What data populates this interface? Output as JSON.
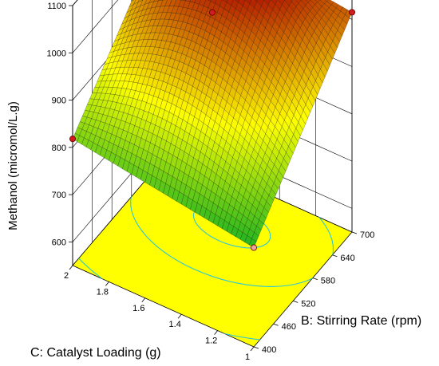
{
  "chart_data": {
    "type": "surface3d",
    "title": "",
    "zlabel": "Methanol (micromol/L.g)",
    "xlabel": "B: Stirring Rate (rpm)",
    "ylabel": "C: Catalyst Loading (g)",
    "x_ticks": [
      "400",
      "460",
      "520",
      "580",
      "640",
      "700"
    ],
    "y_ticks": [
      "1",
      "1.2",
      "1.4",
      "1.6",
      "1.8",
      "2"
    ],
    "z_ticks": [
      "600",
      "700",
      "800",
      "900",
      "1000",
      "1100"
    ],
    "xlim": [
      400,
      700
    ],
    "ylim": [
      1,
      2
    ],
    "zlim": [
      550,
      1100
    ],
    "surface": {
      "corners": [
        {
          "x": 400,
          "y": 1,
          "z": 760
        },
        {
          "x": 700,
          "y": 1,
          "z": 1015
        },
        {
          "x": 400,
          "y": 2,
          "z": 818
        },
        {
          "x": 700,
          "y": 2,
          "z": 1060
        }
      ],
      "peak": {
        "x": 610,
        "y": 1.5,
        "z": 1080
      }
    },
    "design_points": [
      {
        "x": 400,
        "y": 1,
        "z": 760
      },
      {
        "x": 700,
        "y": 1,
        "z": 1015
      },
      {
        "x": 400,
        "y": 2,
        "z": 818
      },
      {
        "x": 700,
        "y": 2,
        "z": 1060
      },
      {
        "x": 550,
        "y": 1.5,
        "z": 1050
      }
    ],
    "colors": {
      "floor": "#ffff00",
      "contour": "#2ec7d6",
      "surface_low": "#22b422",
      "surface_mid": "#ffff00",
      "surface_high": "#aa0000",
      "point": "#d41c1c"
    }
  }
}
